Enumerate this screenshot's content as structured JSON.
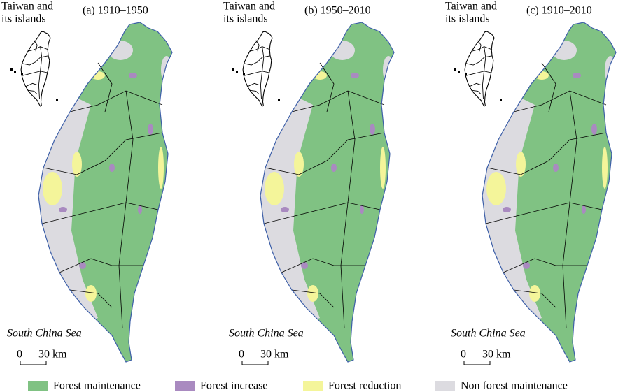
{
  "panels": [
    {
      "title": "(a) 1910–1950",
      "inset_label": [
        "Taiwan and",
        "its islands"
      ],
      "sea_label": "South China Sea",
      "scale": {
        "start": "0",
        "end": "30 km"
      }
    },
    {
      "title": "(b) 1950–2010",
      "inset_label": [
        "Taiwan and",
        "its islands"
      ],
      "sea_label": "South China Sea",
      "scale": {
        "start": "0",
        "end": "30 km"
      }
    },
    {
      "title": "(c) 1910–2010",
      "inset_label": [
        "Taiwan and",
        "its islands"
      ],
      "sea_label": "South China Sea",
      "scale": {
        "start": "0",
        "end": "30 km"
      }
    }
  ],
  "legend": [
    {
      "label": "Forest maintenance",
      "color": "#80c283"
    },
    {
      "label": "Forest increase",
      "color": "#a98ac0"
    },
    {
      "label": "Forest reduction",
      "color": "#f4f59a"
    },
    {
      "label": "Non forest maintenance",
      "color": "#dcdbe0"
    }
  ]
}
